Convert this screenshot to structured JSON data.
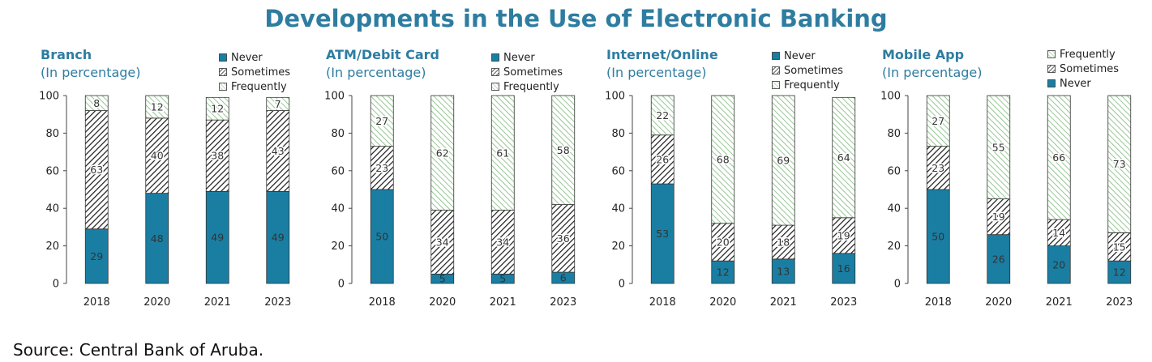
{
  "title": "Developments in the Use of Electronic Banking",
  "source": "Source: Central Bank of Aruba.",
  "colors": {
    "accent": "#2E7DA1",
    "never": "#1A7EA3",
    "sometimes": "#1a1a1a",
    "frequently": "#7DB87A"
  },
  "chart_data": [
    {
      "type": "bar",
      "stacked": true,
      "title": "Branch",
      "subtitle": "(In percentage)",
      "categories": [
        "2018",
        "2020",
        "2021",
        "2023"
      ],
      "ylim": [
        0,
        100
      ],
      "yticks": [
        0,
        20,
        40,
        60,
        80,
        100
      ],
      "legend_order": [
        "Never",
        "Sometimes",
        "Frequently"
      ],
      "series": [
        {
          "name": "Never",
          "values": [
            29,
            48,
            49,
            49
          ]
        },
        {
          "name": "Sometimes",
          "values": [
            63,
            40,
            38,
            43
          ]
        },
        {
          "name": "Frequently",
          "values": [
            8,
            12,
            12,
            7
          ]
        }
      ]
    },
    {
      "type": "bar",
      "stacked": true,
      "title": "ATM/Debit Card",
      "subtitle": "(In percentage)",
      "categories": [
        "2018",
        "2020",
        "2021",
        "2023"
      ],
      "ylim": [
        0,
        100
      ],
      "yticks": [
        0,
        20,
        40,
        60,
        80,
        100
      ],
      "legend_order": [
        "Never",
        "Sometimes",
        "Frequently"
      ],
      "series": [
        {
          "name": "Never",
          "values": [
            50,
            5,
            5,
            6
          ]
        },
        {
          "name": "Sometimes",
          "values": [
            23,
            34,
            34,
            36
          ]
        },
        {
          "name": "Frequently",
          "values": [
            27,
            62,
            61,
            58
          ]
        }
      ]
    },
    {
      "type": "bar",
      "stacked": true,
      "title": "Internet/Online",
      "subtitle": "(In percentage)",
      "categories": [
        "2018",
        "2020",
        "2021",
        "2023"
      ],
      "ylim": [
        0,
        100
      ],
      "yticks": [
        0,
        20,
        40,
        60,
        80,
        100
      ],
      "legend_order": [
        "Never",
        "Sometimes",
        "Frequently"
      ],
      "series": [
        {
          "name": "Never",
          "values": [
            53,
            12,
            13,
            16
          ]
        },
        {
          "name": "Sometimes",
          "values": [
            26,
            20,
            18,
            19
          ]
        },
        {
          "name": "Frequently",
          "values": [
            22,
            68,
            69,
            64
          ]
        }
      ]
    },
    {
      "type": "bar",
      "stacked": true,
      "title": "Mobile App",
      "subtitle": "(In percentage)",
      "categories": [
        "2018",
        "2020",
        "2021",
        "2023"
      ],
      "ylim": [
        0,
        100
      ],
      "yticks": [
        0,
        20,
        40,
        60,
        80,
        100
      ],
      "legend_order": [
        "Frequently",
        "Sometimes",
        "Never"
      ],
      "series": [
        {
          "name": "Never",
          "values": [
            50,
            26,
            20,
            12
          ]
        },
        {
          "name": "Sometimes",
          "values": [
            23,
            19,
            14,
            15
          ]
        },
        {
          "name": "Frequently",
          "values": [
            27,
            55,
            66,
            73
          ]
        }
      ]
    }
  ]
}
